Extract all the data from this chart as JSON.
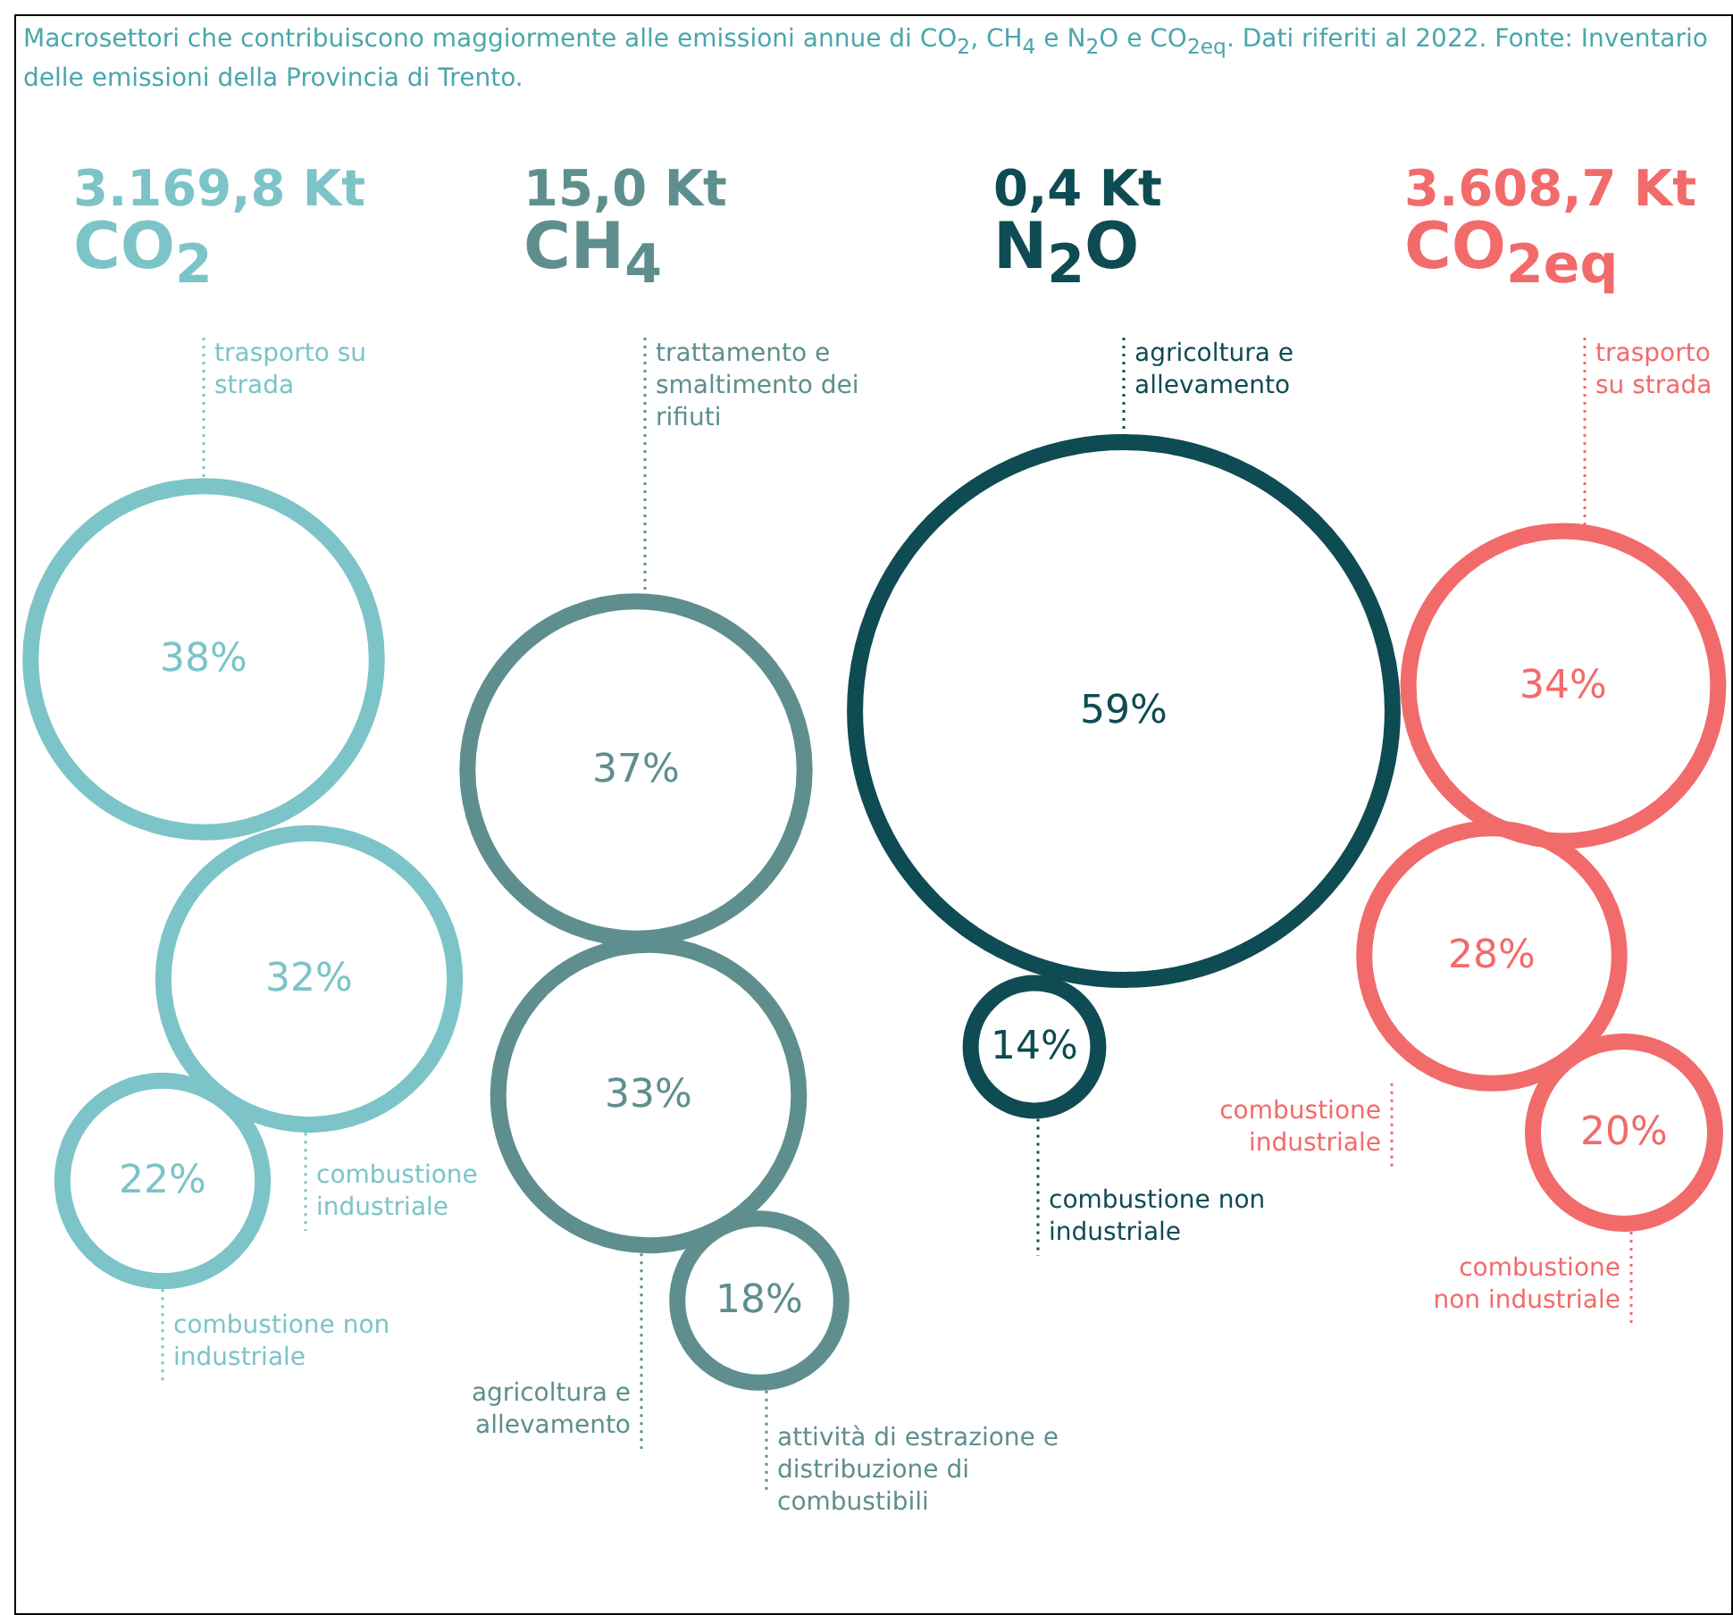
{
  "chart_data": [
    {
      "type": "other",
      "title": "3.169,8 Kt",
      "subtitle": "CO$_{2}$",
      "annotations": [
        "Macrosettori che contribuiscono maggiormente alle emissioni annue di CO$_{2}$, CH$_{4}$ e N$_{2}$O e CO$_{2eq}$. Dati riferiti al 2022. Fonte: Inventario delle emissioni della Provincia di Trento."
      ],
      "categories": [
        "trasporto su strada",
        "combustione industriale",
        "combustione non industriale"
      ],
      "values": [
        38,
        32,
        22
      ],
      "value_labels": [
        "38%",
        "32%",
        "22%"
      ],
      "color": "#7cc4c8"
    },
    {
      "type": "other",
      "title": "15,0 Kt",
      "subtitle": "CH$_{4}$",
      "categories": [
        "trattamento e smaltimento dei rifiuti",
        "agricoltura e allevamento",
        "attività di estrazione e distribuzione di combustibili"
      ],
      "values": [
        37,
        33,
        18
      ],
      "value_labels": [
        "37%",
        "33%",
        "18%"
      ],
      "color": "#5e8f8e"
    },
    {
      "type": "other",
      "title": "0,4 Kt",
      "subtitle": "N$_{2}$O",
      "categories": [
        "agricoltura e allevamento",
        "combustione non industriale"
      ],
      "values": [
        59,
        14
      ],
      "value_labels": [
        "59%",
        "14%"
      ],
      "color": "#0f4b52"
    },
    {
      "type": "other",
      "title": "3.608,7 Kt",
      "subtitle": "CO$_{2eq}$",
      "categories": [
        "trasporto su strada",
        "combustione industriale",
        "combustione non industriale"
      ],
      "values": [
        34,
        28,
        20
      ],
      "value_labels": [
        "34%",
        "28%",
        "20%"
      ],
      "color": "#f26b6b"
    }
  ]
}
